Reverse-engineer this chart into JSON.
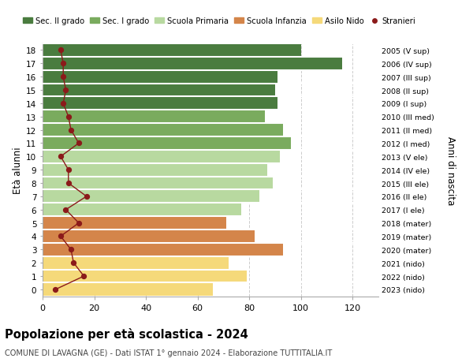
{
  "ages": [
    18,
    17,
    16,
    15,
    14,
    13,
    12,
    11,
    10,
    9,
    8,
    7,
    6,
    5,
    4,
    3,
    2,
    1,
    0
  ],
  "bar_values": [
    100,
    116,
    91,
    90,
    91,
    86,
    93,
    96,
    92,
    87,
    89,
    84,
    77,
    71,
    82,
    93,
    72,
    79,
    66
  ],
  "stranieri": [
    7,
    8,
    8,
    9,
    8,
    10,
    11,
    14,
    7,
    10,
    10,
    17,
    9,
    14,
    7,
    11,
    12,
    16,
    5
  ],
  "right_labels": [
    "2005 (V sup)",
    "2006 (IV sup)",
    "2007 (III sup)",
    "2008 (II sup)",
    "2009 (I sup)",
    "2010 (III med)",
    "2011 (II med)",
    "2012 (I med)",
    "2013 (V ele)",
    "2014 (IV ele)",
    "2015 (III ele)",
    "2016 (II ele)",
    "2017 (I ele)",
    "2018 (mater)",
    "2019 (mater)",
    "2020 (mater)",
    "2021 (nido)",
    "2022 (nido)",
    "2023 (nido)"
  ],
  "bar_colors": [
    "#4a7c3f",
    "#4a7c3f",
    "#4a7c3f",
    "#4a7c3f",
    "#4a7c3f",
    "#7aab5e",
    "#7aab5e",
    "#7aab5e",
    "#b8d9a0",
    "#b8d9a0",
    "#b8d9a0",
    "#b8d9a0",
    "#b8d9a0",
    "#d4854a",
    "#d4854a",
    "#d4854a",
    "#f5d97a",
    "#f5d97a",
    "#f5d97a"
  ],
  "legend_labels": [
    "Sec. II grado",
    "Sec. I grado",
    "Scuola Primaria",
    "Scuola Infanzia",
    "Asilo Nido",
    "Stranieri"
  ],
  "legend_colors": [
    "#4a7c3f",
    "#7aab5e",
    "#b8d9a0",
    "#d4854a",
    "#f5d97a",
    "#8b1a1a"
  ],
  "stranieri_color": "#8b1a1a",
  "title": "Popolazione per età scolastica - 2024",
  "subtitle": "COMUNE DI LAVAGNA (GE) - Dati ISTAT 1° gennaio 2024 - Elaborazione TUTTITALIA.IT",
  "ylabel": "Età alunni",
  "right_ylabel": "Anni di nascita",
  "xlim": [
    0,
    130
  ],
  "xticks": [
    0,
    20,
    40,
    60,
    80,
    100,
    120
  ],
  "background_color": "#ffffff",
  "grid_color": "#cccccc",
  "bar_gap_color": "#ffffff"
}
